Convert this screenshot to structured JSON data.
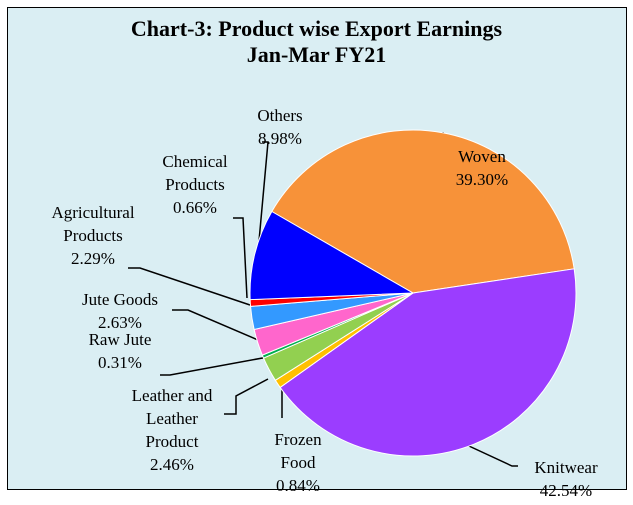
{
  "chart_data": {
    "type": "pie",
    "title": "Chart-3: Product wise Export Earnings",
    "subtitle": "Jan-Mar FY21",
    "categories": [
      "Woven",
      "Knitwear",
      "Frozen Food",
      "Leather and Leather Product",
      "Raw Jute",
      "Jute Goods",
      "Agricultural Products",
      "Chemical Products",
      "Others"
    ],
    "values": [
      39.3,
      42.54,
      0.84,
      2.46,
      0.31,
      2.63,
      2.29,
      0.66,
      8.98
    ],
    "value_labels": [
      "39.30%",
      "42.54%",
      "0.84%",
      "2.46%",
      "0.31%",
      "2.63%",
      "2.29%",
      "0.66%",
      "8.98%"
    ],
    "colors": [
      "#f79239",
      "#9b3dff",
      "#ffc000",
      "#92d050",
      "#00b050",
      "#ff66cc",
      "#3399ff",
      "#ff0000",
      "#0000ff"
    ]
  }
}
